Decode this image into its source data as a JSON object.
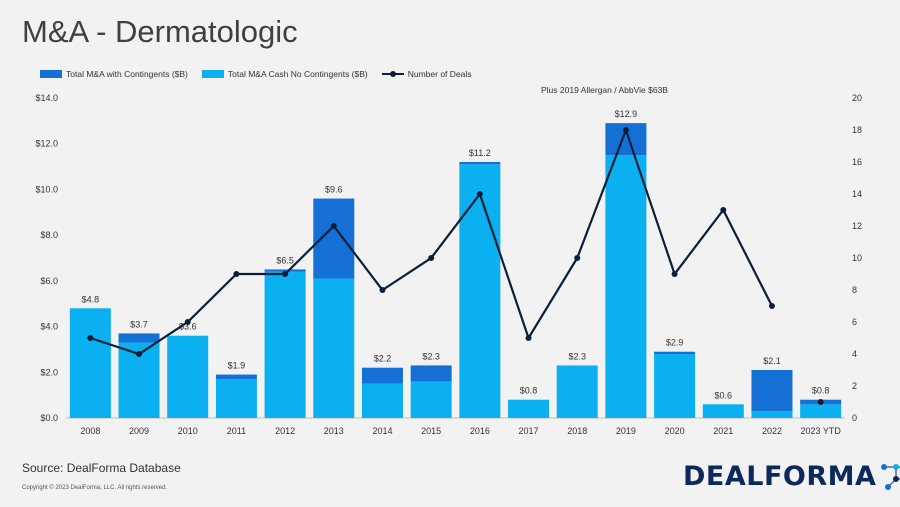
{
  "header": {
    "title": "M&A - Dermatologic"
  },
  "legend": {
    "items": [
      {
        "label": "Total M&A with Contingents ($B)",
        "color": "#1570d6"
      },
      {
        "label": "Total M&A Cash No Contingents ($B)",
        "color": "#0ab0ef"
      },
      {
        "label": "Number of Deals",
        "color": "#0b1f3a"
      }
    ]
  },
  "annotation": "Plus 2019 Allergan / AbbVie $63B",
  "footer": {
    "source": "Source: DealForma Database",
    "copyright": "Copyright © 2023 DealForma, LLC. All rights reserved.",
    "logo": "DEALFORMA"
  },
  "colors": {
    "contingents": "#1570d6",
    "cash": "#0ab0ef",
    "deals": "#0b1f3a",
    "background": "#f2f2f2"
  },
  "chart_data": {
    "type": "bar",
    "stacked": true,
    "categories": [
      "2008",
      "2009",
      "2010",
      "2011",
      "2012",
      "2013",
      "2014",
      "2015",
      "2016",
      "2017",
      "2018",
      "2019",
      "2020",
      "2021",
      "2022",
      "2023 YTD"
    ],
    "series": [
      {
        "name": "Total M&A Cash No Contingents ($B)",
        "values": [
          4.8,
          3.3,
          3.6,
          1.7,
          6.4,
          6.1,
          1.5,
          1.6,
          11.1,
          0.8,
          2.3,
          11.5,
          2.8,
          0.6,
          0.3,
          0.6
        ]
      },
      {
        "name": "Total M&A with Contingents ($B)",
        "values": [
          0.0,
          0.4,
          0.0,
          0.2,
          0.1,
          3.5,
          0.7,
          0.7,
          0.1,
          0.0,
          0.0,
          1.4,
          0.1,
          0.0,
          1.8,
          0.2
        ]
      },
      {
        "name": "Number of Deals",
        "axis": "right",
        "type": "line",
        "values": [
          5,
          4,
          6,
          9,
          9,
          12,
          8,
          10,
          14,
          5,
          10,
          18,
          9,
          13,
          7,
          1
        ]
      }
    ],
    "totals_labels": [
      "$4.8",
      "$3.7",
      "$3.6",
      "$1.9",
      "$6.5",
      "$9.6",
      "$2.2",
      "$2.3",
      "$11.2",
      "$0.8",
      "$2.3",
      "$12.9",
      "$2.9",
      "$0.6",
      "$2.1",
      "$0.8"
    ],
    "y_left": {
      "ylim": [
        0,
        14
      ],
      "ticks": [
        "$0.0",
        "$2.0",
        "$4.0",
        "$6.0",
        "$8.0",
        "$10.0",
        "$12.0",
        "$14.0"
      ]
    },
    "y_right": {
      "ylim": [
        0,
        20
      ],
      "ticks": [
        "0",
        "2",
        "4",
        "6",
        "8",
        "10",
        "12",
        "14",
        "16",
        "18",
        "20"
      ]
    },
    "grid": false,
    "legend_position": "top-left"
  }
}
